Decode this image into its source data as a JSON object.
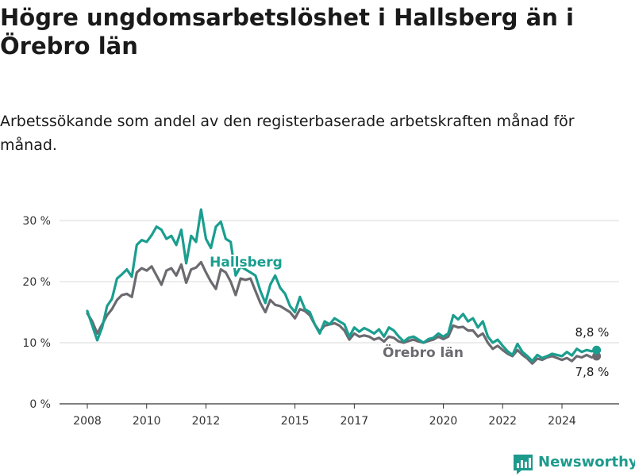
{
  "title": "Högre ungdomsarbetslöshet i Hallsberg än i Örebro län",
  "subtitle": "Arbetssökande som andel av den registerbaserade arbetskraften månad för månad.",
  "brand": "Newsworthy",
  "colors": {
    "hallsberg": "#1a9e8f",
    "orebro": "#6b6a70",
    "grid": "#d9d9d9",
    "brand": "#1c9a8c"
  },
  "chart_data": {
    "type": "line",
    "x_ticks": [
      "2008",
      "2010",
      "2012",
      "2015",
      "2017",
      "2020",
      "2022",
      "2024"
    ],
    "y_ticks": [
      "0 %",
      "10 %",
      "20 %",
      "30 %"
    ],
    "ylim": [
      0,
      30
    ],
    "xlim": [
      "2008-01",
      "2025-06"
    ],
    "grid": true,
    "series": [
      {
        "name": "Hallsberg",
        "end_label": "8,8 %",
        "points": [
          [
            "2008-01",
            15.2
          ],
          [
            "2008-03",
            12.8
          ],
          [
            "2008-05",
            10.4
          ],
          [
            "2008-07",
            12.5
          ],
          [
            "2008-09",
            16.0
          ],
          [
            "2008-11",
            17.2
          ],
          [
            "2009-01",
            20.5
          ],
          [
            "2009-03",
            21.2
          ],
          [
            "2009-05",
            22.0
          ],
          [
            "2009-07",
            20.8
          ],
          [
            "2009-09",
            26.0
          ],
          [
            "2009-11",
            26.8
          ],
          [
            "2010-01",
            26.5
          ],
          [
            "2010-03",
            27.6
          ],
          [
            "2010-05",
            29.0
          ],
          [
            "2010-07",
            28.5
          ],
          [
            "2010-09",
            27.0
          ],
          [
            "2010-11",
            27.5
          ],
          [
            "2011-01",
            26.0
          ],
          [
            "2011-03",
            28.5
          ],
          [
            "2011-05",
            23.0
          ],
          [
            "2011-07",
            27.5
          ],
          [
            "2011-09",
            26.5
          ],
          [
            "2011-11",
            31.8
          ],
          [
            "2012-01",
            27.0
          ],
          [
            "2012-03",
            25.5
          ],
          [
            "2012-05",
            29.0
          ],
          [
            "2012-07",
            29.8
          ],
          [
            "2012-09",
            27.0
          ],
          [
            "2012-11",
            26.5
          ],
          [
            "2013-01",
            21.0
          ],
          [
            "2013-03",
            22.5
          ],
          [
            "2013-05",
            22.0
          ],
          [
            "2013-07",
            21.5
          ],
          [
            "2013-09",
            21.0
          ],
          [
            "2013-11",
            18.5
          ],
          [
            "2014-01",
            16.5
          ],
          [
            "2014-03",
            19.5
          ],
          [
            "2014-05",
            21.0
          ],
          [
            "2014-07",
            19.0
          ],
          [
            "2014-09",
            18.0
          ],
          [
            "2014-11",
            16.0
          ],
          [
            "2015-01",
            15.0
          ],
          [
            "2015-03",
            17.5
          ],
          [
            "2015-05",
            15.5
          ],
          [
            "2015-07",
            15.0
          ],
          [
            "2015-09",
            13.0
          ],
          [
            "2015-11",
            11.5
          ],
          [
            "2016-01",
            13.5
          ],
          [
            "2016-03",
            13.0
          ],
          [
            "2016-05",
            14.0
          ],
          [
            "2016-07",
            13.5
          ],
          [
            "2016-09",
            13.0
          ],
          [
            "2016-11",
            11.0
          ],
          [
            "2017-01",
            12.5
          ],
          [
            "2017-03",
            11.8
          ],
          [
            "2017-05",
            12.4
          ],
          [
            "2017-07",
            12.0
          ],
          [
            "2017-09",
            11.5
          ],
          [
            "2017-11",
            12.2
          ],
          [
            "2018-01",
            11.0
          ],
          [
            "2018-03",
            12.5
          ],
          [
            "2018-05",
            12.0
          ],
          [
            "2018-07",
            11.0
          ],
          [
            "2018-09",
            10.2
          ],
          [
            "2018-11",
            10.8
          ],
          [
            "2019-01",
            11.0
          ],
          [
            "2019-03",
            10.5
          ],
          [
            "2019-05",
            10.0
          ],
          [
            "2019-07",
            10.6
          ],
          [
            "2019-09",
            10.8
          ],
          [
            "2019-11",
            11.5
          ],
          [
            "2020-01",
            11.0
          ],
          [
            "2020-03",
            11.5
          ],
          [
            "2020-05",
            14.5
          ],
          [
            "2020-07",
            13.8
          ],
          [
            "2020-09",
            14.7
          ],
          [
            "2020-11",
            13.5
          ],
          [
            "2021-01",
            14.0
          ],
          [
            "2021-03",
            12.5
          ],
          [
            "2021-05",
            13.5
          ],
          [
            "2021-07",
            11.0
          ],
          [
            "2021-09",
            10.0
          ],
          [
            "2021-11",
            10.5
          ],
          [
            "2022-01",
            9.5
          ],
          [
            "2022-03",
            8.6
          ],
          [
            "2022-05",
            8.0
          ],
          [
            "2022-07",
            9.8
          ],
          [
            "2022-09",
            8.5
          ],
          [
            "2022-11",
            7.8
          ],
          [
            "2023-01",
            7.0
          ],
          [
            "2023-03",
            8.0
          ],
          [
            "2023-05",
            7.5
          ],
          [
            "2023-07",
            7.8
          ],
          [
            "2023-09",
            8.2
          ],
          [
            "2023-11",
            8.0
          ],
          [
            "2024-01",
            7.8
          ],
          [
            "2024-03",
            8.5
          ],
          [
            "2024-05",
            7.9
          ],
          [
            "2024-07",
            9.0
          ],
          [
            "2024-09",
            8.5
          ],
          [
            "2024-11",
            8.8
          ],
          [
            "2025-01",
            8.6
          ],
          [
            "2025-03",
            8.8
          ]
        ]
      },
      {
        "name": "Örebro län",
        "end_label": "7,8 %",
        "points": [
          [
            "2008-01",
            14.8
          ],
          [
            "2008-03",
            13.5
          ],
          [
            "2008-05",
            11.5
          ],
          [
            "2008-07",
            13.0
          ],
          [
            "2008-09",
            14.5
          ],
          [
            "2008-11",
            15.5
          ],
          [
            "2009-01",
            17.0
          ],
          [
            "2009-03",
            17.8
          ],
          [
            "2009-05",
            18.0
          ],
          [
            "2009-07",
            17.5
          ],
          [
            "2009-09",
            21.5
          ],
          [
            "2009-11",
            22.2
          ],
          [
            "2010-01",
            21.8
          ],
          [
            "2010-03",
            22.5
          ],
          [
            "2010-05",
            21.0
          ],
          [
            "2010-07",
            19.5
          ],
          [
            "2010-09",
            21.8
          ],
          [
            "2010-11",
            22.2
          ],
          [
            "2011-01",
            21.0
          ],
          [
            "2011-03",
            22.8
          ],
          [
            "2011-05",
            19.8
          ],
          [
            "2011-07",
            22.0
          ],
          [
            "2011-09",
            22.3
          ],
          [
            "2011-11",
            23.2
          ],
          [
            "2012-01",
            21.5
          ],
          [
            "2012-03",
            20.0
          ],
          [
            "2012-05",
            18.8
          ],
          [
            "2012-07",
            22.0
          ],
          [
            "2012-09",
            21.5
          ],
          [
            "2012-11",
            20.0
          ],
          [
            "2013-01",
            17.8
          ],
          [
            "2013-03",
            20.5
          ],
          [
            "2013-05",
            20.3
          ],
          [
            "2013-07",
            20.5
          ],
          [
            "2013-09",
            18.5
          ],
          [
            "2013-11",
            16.5
          ],
          [
            "2014-01",
            15.0
          ],
          [
            "2014-03",
            17.0
          ],
          [
            "2014-05",
            16.2
          ],
          [
            "2014-07",
            16.0
          ],
          [
            "2014-09",
            15.5
          ],
          [
            "2014-11",
            15.0
          ],
          [
            "2015-01",
            14.0
          ],
          [
            "2015-03",
            15.5
          ],
          [
            "2015-05",
            15.2
          ],
          [
            "2015-07",
            14.5
          ],
          [
            "2015-09",
            13.0
          ],
          [
            "2015-11",
            11.8
          ],
          [
            "2016-01",
            12.8
          ],
          [
            "2016-03",
            13.0
          ],
          [
            "2016-05",
            13.2
          ],
          [
            "2016-07",
            12.8
          ],
          [
            "2016-09",
            12.0
          ],
          [
            "2016-11",
            10.5
          ],
          [
            "2017-01",
            11.5
          ],
          [
            "2017-03",
            11.0
          ],
          [
            "2017-05",
            11.2
          ],
          [
            "2017-07",
            11.0
          ],
          [
            "2017-09",
            10.5
          ],
          [
            "2017-11",
            10.8
          ],
          [
            "2018-01",
            10.2
          ],
          [
            "2018-03",
            11.0
          ],
          [
            "2018-05",
            10.8
          ],
          [
            "2018-07",
            10.2
          ],
          [
            "2018-09",
            10.0
          ],
          [
            "2018-11",
            10.3
          ],
          [
            "2019-01",
            10.5
          ],
          [
            "2019-03",
            10.2
          ],
          [
            "2019-05",
            10.0
          ],
          [
            "2019-07",
            10.3
          ],
          [
            "2019-09",
            10.5
          ],
          [
            "2019-11",
            11.0
          ],
          [
            "2020-01",
            10.6
          ],
          [
            "2020-03",
            11.0
          ],
          [
            "2020-05",
            12.8
          ],
          [
            "2020-07",
            12.5
          ],
          [
            "2020-09",
            12.6
          ],
          [
            "2020-11",
            12.0
          ],
          [
            "2021-01",
            12.0
          ],
          [
            "2021-03",
            11.0
          ],
          [
            "2021-05",
            11.5
          ],
          [
            "2021-07",
            10.0
          ],
          [
            "2021-09",
            9.0
          ],
          [
            "2021-11",
            9.5
          ],
          [
            "2022-01",
            8.8
          ],
          [
            "2022-03",
            8.2
          ],
          [
            "2022-05",
            7.8
          ],
          [
            "2022-07",
            8.8
          ],
          [
            "2022-09",
            8.0
          ],
          [
            "2022-11",
            7.4
          ],
          [
            "2023-01",
            6.6
          ],
          [
            "2023-03",
            7.4
          ],
          [
            "2023-05",
            7.2
          ],
          [
            "2023-07",
            7.6
          ],
          [
            "2023-09",
            7.8
          ],
          [
            "2023-11",
            7.5
          ],
          [
            "2024-01",
            7.2
          ],
          [
            "2024-03",
            7.5
          ],
          [
            "2024-05",
            7.0
          ],
          [
            "2024-07",
            7.8
          ],
          [
            "2024-09",
            7.6
          ],
          [
            "2024-11",
            8.0
          ],
          [
            "2025-01",
            7.6
          ],
          [
            "2025-03",
            7.8
          ]
        ]
      }
    ]
  }
}
